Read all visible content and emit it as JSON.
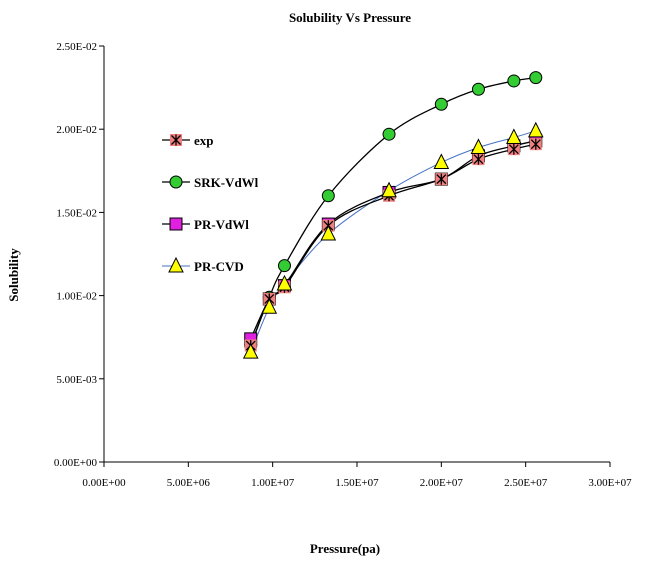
{
  "chart_data": {
    "type": "line",
    "title": "Solubility Vs Pressure",
    "xlabel": "Pressure(pa)",
    "ylabel": "Solubility",
    "xlim": [
      0,
      30000000
    ],
    "ylim": [
      0,
      0.025
    ],
    "x_ticks": [
      0,
      5000000,
      10000000,
      15000000,
      20000000,
      25000000,
      30000000
    ],
    "x_tick_labels": [
      "0.00E+00",
      "5.00E+06",
      "1.00E+07",
      "1.50E+07",
      "2.00E+07",
      "2.50E+07",
      "3.00E+07"
    ],
    "y_ticks": [
      0,
      0.005,
      0.01,
      0.015,
      0.02,
      0.025
    ],
    "y_tick_labels": [
      "0.00E+00",
      "5.00E-03",
      "1.00E-02",
      "1.50E-02",
      "2.00E-02",
      "2.50E-02"
    ],
    "grid": false,
    "legend_position": "left, inside plot area",
    "series": [
      {
        "name": "exp",
        "marker": "star-square",
        "color": "#000000",
        "marker_color": "#f08080",
        "x": [
          8700000,
          9800000,
          10700000,
          13300000,
          16900000,
          20000000,
          22200000,
          24300000,
          25600000
        ],
        "y": [
          0.007,
          0.0098,
          0.0105,
          0.0142,
          0.016,
          0.017,
          0.0182,
          0.0188,
          0.0191
        ]
      },
      {
        "name": "SRK-VdWl",
        "marker": "circle",
        "color": "#000000",
        "marker_color": "#33cc33",
        "x": [
          8700000,
          9800000,
          10700000,
          13300000,
          16900000,
          20000000,
          22200000,
          24300000,
          25600000
        ],
        "y": [
          0.007,
          0.0099,
          0.0118,
          0.016,
          0.0197,
          0.0215,
          0.0224,
          0.0229,
          0.0231
        ]
      },
      {
        "name": "PR-VdWl",
        "marker": "square",
        "color": "#000000",
        "marker_color": "#e020e0",
        "x": [
          8700000,
          9800000,
          10700000,
          13300000,
          16900000,
          20000000,
          22200000,
          24300000,
          25600000
        ],
        "y": [
          0.0074,
          0.0098,
          0.0106,
          0.0143,
          0.0162,
          0.017,
          0.0184,
          0.019,
          0.0193
        ]
      },
      {
        "name": "PR-CVD",
        "marker": "triangle",
        "color": "#4472c4",
        "marker_color": "#ffff00",
        "x": [
          8700000,
          9800000,
          10700000,
          13300000,
          16900000,
          20000000,
          22200000,
          24300000,
          25600000
        ],
        "y": [
          0.0066,
          0.0093,
          0.0107,
          0.0137,
          0.0163,
          0.018,
          0.0189,
          0.0195,
          0.0199
        ]
      }
    ]
  }
}
